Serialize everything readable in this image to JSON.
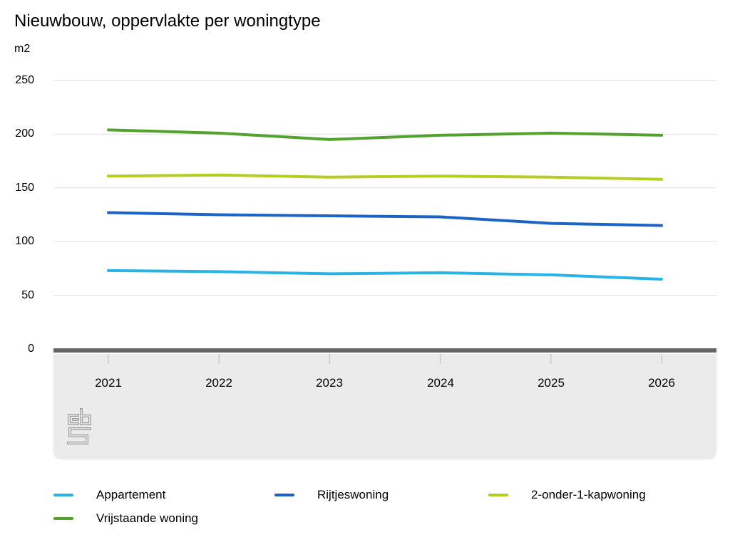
{
  "chart_data": {
    "type": "line",
    "title": "Nieuwbouw, oppervlakte per woningtype",
    "ylabel": "m2",
    "xlabel": "",
    "x": [
      2021,
      2022,
      2023,
      2024,
      2025,
      2026
    ],
    "xtick_labels": [
      "2021",
      "2022",
      "2023",
      "2024",
      "2025",
      "2026"
    ],
    "ylim": [
      0,
      250
    ],
    "yticks": [
      0,
      50,
      100,
      150,
      200,
      250
    ],
    "ytick_labels": [
      "250",
      "200",
      "150",
      "100",
      "50",
      "0"
    ],
    "grid": true,
    "legend_position": "bottom",
    "series": [
      {
        "name": "Appartement",
        "color": "#29b4e8",
        "values": [
          73,
          72,
          70,
          71,
          69,
          65
        ]
      },
      {
        "name": "Rijtjeswoning",
        "color": "#1c63c8",
        "values": [
          127,
          125,
          124,
          123,
          117,
          115
        ]
      },
      {
        "name": "2-onder-1-kapwoning",
        "color": "#b5cd21",
        "values": [
          161,
          162,
          160,
          161,
          160,
          158
        ]
      },
      {
        "name": "Vrijstaande woning",
        "color": "#52a32d",
        "values": [
          204,
          201,
          195,
          199,
          201,
          199
        ]
      }
    ]
  },
  "logo": "cbs-logo",
  "style": {
    "axis_color": "#666666",
    "gridline_color": "#e0e0e0",
    "tickmark_color": "#c9c9c9",
    "band_color": "#ebebeb",
    "logo_color": "#9c9c9c",
    "text_color": "#000000"
  }
}
